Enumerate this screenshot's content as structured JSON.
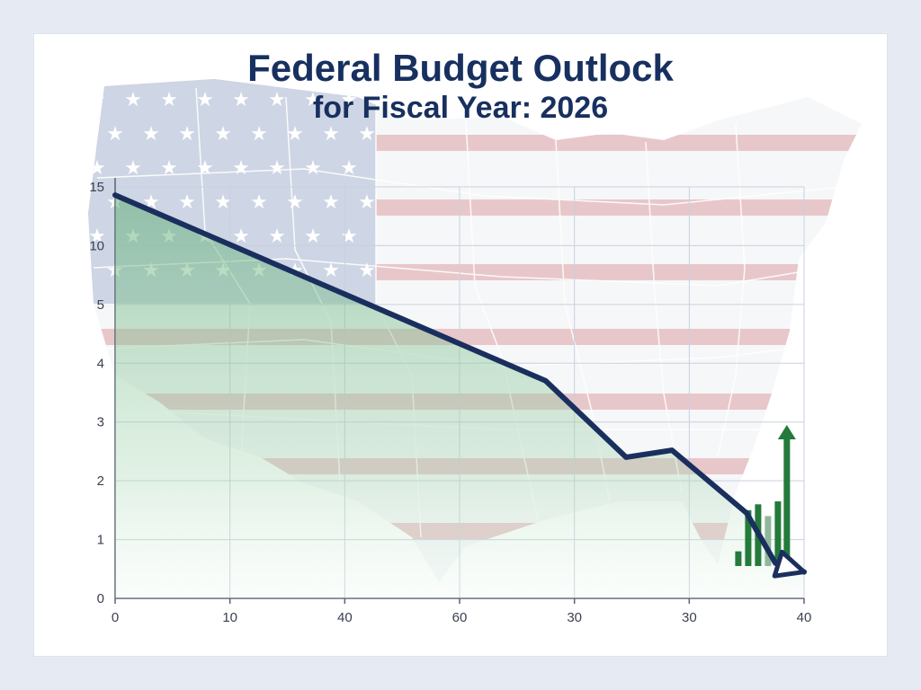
{
  "chart_data": {
    "type": "line",
    "title": "Federal Budget Outlock",
    "subtitle": "for Fiscal Year: 2026",
    "xlabel": "",
    "ylabel": "",
    "x_tick_labels": [
      "0",
      "10",
      "40",
      "60",
      "30",
      "30",
      "40"
    ],
    "y_tick_labels": [
      "0",
      "1",
      "2",
      "3",
      "4",
      "5",
      "10",
      "15"
    ],
    "series": [
      {
        "color": "#1a2f5e",
        "points": [
          {
            "x": 0,
            "y": 14.3
          },
          {
            "x": 3.75,
            "y": 3.7
          },
          {
            "x": 4.45,
            "y": 2.4
          },
          {
            "x": 4.85,
            "y": 2.52
          },
          {
            "x": 5.5,
            "y": 1.45
          },
          {
            "x": 5.75,
            "y": 0.6
          },
          {
            "x": 6.0,
            "y": 0.45
          }
        ]
      }
    ],
    "accent_bars": [
      0.8,
      1.5,
      1.6,
      1.4,
      1.65
    ],
    "arrow_up_color": "#237a3a",
    "area_fill_color": "#6fb482",
    "background_motif": "us-map-flag",
    "grid": true,
    "legend": "none"
  }
}
